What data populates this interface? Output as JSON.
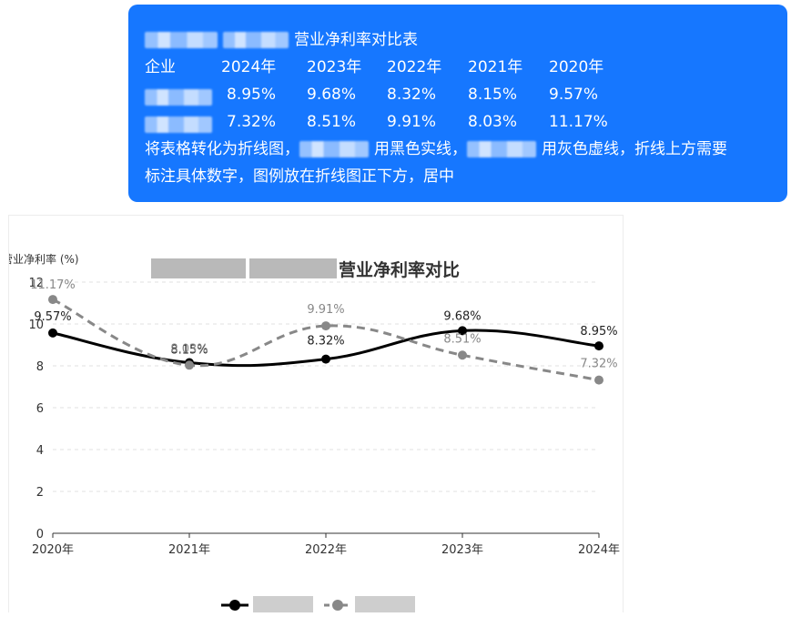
{
  "prompt": {
    "title": "营业净利率对比表",
    "header": [
      "企业",
      "2024年",
      "2023年",
      "2022年",
      "2021年",
      "2020年"
    ],
    "rows": [
      [
        "8.95%",
        "9.68%",
        "8.32%",
        "8.15%",
        "9.57%"
      ],
      [
        "7.32%",
        "8.51%",
        "9.91%",
        "8.03%",
        "11.17%"
      ]
    ],
    "instruction_parts": [
      "将表格转化为折线图，",
      "用黑色实线，",
      "用灰色虚线，折线上方需要"
    ],
    "instruction_line2": "标注具体数字，图例放在折线图正下方，居中"
  },
  "colors": {
    "bubble": "#1677ff",
    "series_a": "#000000",
    "series_b": "#888888",
    "grid": "#e0e0e0",
    "axis": "#333333"
  },
  "chart_data": {
    "type": "line",
    "title": "营业净利率对比",
    "ylabel": "营业净利率 (%)",
    "xlabel": "",
    "categories": [
      "2020年",
      "2021年",
      "2022年",
      "2023年",
      "2024年"
    ],
    "ylim": [
      0,
      12
    ],
    "yticks": [
      0,
      2,
      4,
      6,
      8,
      10,
      12
    ],
    "grid": true,
    "legend_placement": "bottom-center",
    "series": [
      {
        "values": [
          9.57,
          8.15,
          8.32,
          9.68,
          8.95
        ],
        "labels": [
          "9.57%",
          "8.15%",
          "8.32%",
          "9.68%",
          "8.95%"
        ],
        "style": "solid",
        "color": "#000000"
      },
      {
        "values": [
          11.17,
          8.03,
          9.91,
          8.51,
          7.32
        ],
        "labels": [
          "11.17%",
          "8.03%",
          "9.91%",
          "8.51%",
          "7.32%"
        ],
        "style": "dashed",
        "color": "#888888"
      }
    ]
  }
}
